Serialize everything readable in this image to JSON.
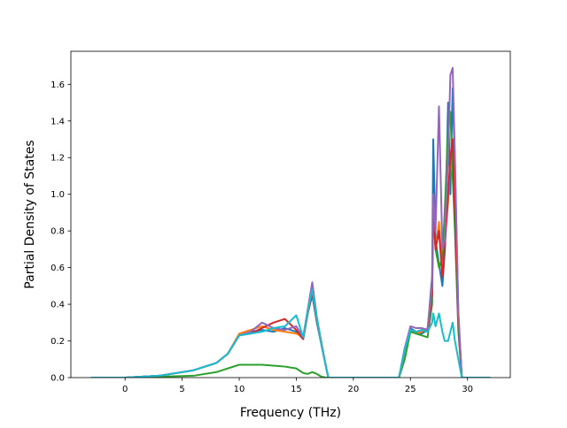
{
  "chart_data": {
    "type": "line",
    "title": "",
    "xlabel": "Frequency (THz)",
    "ylabel": "Partial Density of States",
    "xlim": [
      -4.75,
      33.75
    ],
    "ylim": [
      0.0,
      1.78
    ],
    "xticks": [
      0,
      5,
      10,
      15,
      20,
      25,
      30
    ],
    "yticks": [
      0.0,
      0.2,
      0.4,
      0.6,
      0.8,
      1.0,
      1.2,
      1.4,
      1.6
    ],
    "xtick_labels": [
      "0",
      "5",
      "10",
      "15",
      "20",
      "25",
      "30"
    ],
    "ytick_labels": [
      "0.0",
      "0.2",
      "0.4",
      "0.6",
      "0.8",
      "1.0",
      "1.2",
      "1.4",
      "1.6"
    ],
    "grid": false,
    "legend": false,
    "series": [
      {
        "color": "#1f77b4",
        "x": [
          -3,
          0,
          3,
          6,
          8,
          9,
          10,
          11,
          12,
          13,
          14,
          15,
          15.6,
          16,
          16.4,
          16.8,
          17.2,
          17.6,
          17.8,
          18,
          20,
          23,
          24,
          24.5,
          25,
          25.5,
          26,
          26.5,
          26.9,
          27,
          27.2,
          27.5,
          27.8,
          28,
          28.3,
          28.5,
          28.7,
          28.9,
          29.2,
          29.5,
          30,
          32
        ],
        "y": [
          0,
          0,
          0.01,
          0.04,
          0.08,
          0.13,
          0.23,
          0.25,
          0.26,
          0.25,
          0.27,
          0.25,
          0.21,
          0.35,
          0.45,
          0.3,
          0.18,
          0.06,
          0,
          0,
          0,
          0,
          0,
          0.16,
          0.27,
          0.25,
          0.24,
          0.26,
          0.55,
          1.3,
          0.75,
          0.62,
          0.5,
          0.68,
          1.5,
          1.0,
          1.58,
          1.15,
          0.35,
          0,
          0,
          0
        ]
      },
      {
        "color": "#ff7f0e",
        "x": [
          -3,
          0,
          3,
          6,
          8,
          9,
          10,
          11,
          12,
          13,
          14,
          15,
          15.6,
          16,
          16.4,
          16.8,
          17.2,
          17.6,
          17.8,
          18,
          20,
          23,
          24,
          24.5,
          25,
          25.5,
          26,
          26.5,
          26.9,
          27,
          27.2,
          27.5,
          27.8,
          28,
          28.3,
          28.5,
          28.7,
          28.9,
          29.2,
          29.5,
          30,
          32
        ],
        "y": [
          0,
          0,
          0.01,
          0.04,
          0.08,
          0.13,
          0.24,
          0.26,
          0.28,
          0.26,
          0.25,
          0.24,
          0.22,
          0.36,
          0.5,
          0.32,
          0.19,
          0.06,
          0,
          0,
          0,
          0,
          0,
          0.15,
          0.26,
          0.24,
          0.25,
          0.27,
          0.5,
          1.0,
          0.7,
          0.85,
          0.6,
          0.75,
          0.95,
          1.2,
          1.1,
          0.9,
          0.3,
          0,
          0,
          0
        ]
      },
      {
        "color": "#2ca02c",
        "x": [
          -3,
          0,
          3,
          6,
          8,
          9,
          10,
          11,
          12,
          13,
          14,
          15,
          15.6,
          16,
          16.4,
          16.8,
          17.2,
          17.6,
          17.8,
          18,
          20,
          23,
          24,
          24.5,
          25,
          25.5,
          26,
          26.5,
          26.9,
          27,
          27.2,
          27.5,
          27.8,
          28,
          28.3,
          28.5,
          28.7,
          28.9,
          29.2,
          29.5,
          30,
          32
        ],
        "y": [
          0,
          0,
          0.005,
          0.01,
          0.03,
          0.05,
          0.07,
          0.07,
          0.07,
          0.065,
          0.06,
          0.05,
          0.025,
          0.02,
          0.03,
          0.02,
          0.005,
          0,
          0,
          0,
          0,
          0,
          0,
          0.1,
          0.25,
          0.24,
          0.23,
          0.22,
          0.4,
          0.9,
          0.7,
          0.6,
          0.65,
          0.9,
          1.35,
          1.45,
          1.1,
          0.8,
          0.25,
          0,
          0,
          0
        ]
      },
      {
        "color": "#d62728",
        "x": [
          -3,
          0,
          3,
          6,
          8,
          9,
          10,
          11,
          12,
          13,
          14,
          15,
          15.6,
          16,
          16.4,
          16.8,
          17.2,
          17.6,
          17.8,
          18,
          20,
          23,
          24,
          24.5,
          25,
          25.5,
          26,
          26.5,
          26.9,
          27,
          27.2,
          27.5,
          27.8,
          28,
          28.3,
          28.5,
          28.7,
          28.9,
          29.2,
          29.5,
          30,
          32
        ],
        "y": [
          0,
          0,
          0.01,
          0.04,
          0.08,
          0.13,
          0.23,
          0.24,
          0.27,
          0.3,
          0.32,
          0.26,
          0.21,
          0.35,
          0.47,
          0.31,
          0.18,
          0.06,
          0,
          0,
          0,
          0,
          0,
          0.15,
          0.26,
          0.25,
          0.26,
          0.25,
          0.45,
          0.95,
          0.7,
          0.8,
          0.55,
          0.7,
          1.0,
          1.2,
          1.3,
          0.9,
          0.3,
          0,
          0,
          0
        ]
      },
      {
        "color": "#9467bd",
        "x": [
          -3,
          0,
          3,
          6,
          8,
          9,
          10,
          11,
          12,
          13,
          14,
          15,
          15.6,
          16,
          16.4,
          16.8,
          17.2,
          17.6,
          17.8,
          18,
          20,
          23,
          24,
          24.5,
          25,
          25.5,
          26,
          26.5,
          26.9,
          27,
          27.2,
          27.5,
          27.8,
          28,
          28.3,
          28.5,
          28.7,
          28.9,
          29.2,
          29.5,
          30,
          32
        ],
        "y": [
          0,
          0,
          0.01,
          0.04,
          0.08,
          0.13,
          0.23,
          0.25,
          0.3,
          0.27,
          0.26,
          0.28,
          0.22,
          0.37,
          0.52,
          0.33,
          0.19,
          0.06,
          0,
          0,
          0,
          0,
          0,
          0.16,
          0.28,
          0.27,
          0.27,
          0.26,
          0.5,
          1.0,
          0.8,
          1.48,
          0.7,
          0.75,
          1.2,
          1.65,
          1.69,
          1.2,
          0.35,
          0,
          0,
          0
        ]
      },
      {
        "color": "#17becf",
        "x": [
          -3,
          0,
          3,
          6,
          8,
          9,
          10,
          11,
          12,
          13,
          14,
          15,
          15.6,
          16,
          16.4,
          16.8,
          17.2,
          17.6,
          17.8,
          18,
          20,
          23,
          24,
          24.5,
          25,
          25.5,
          26,
          26.5,
          26.9,
          27,
          27.2,
          27.5,
          27.8,
          28,
          28.3,
          28.5,
          28.7,
          28.9,
          29.2,
          29.5,
          30,
          32
        ],
        "y": [
          0,
          0,
          0.01,
          0.04,
          0.08,
          0.13,
          0.23,
          0.24,
          0.25,
          0.27,
          0.28,
          0.34,
          0.22,
          0.36,
          0.48,
          0.32,
          0.18,
          0.06,
          0,
          0,
          0,
          0,
          0,
          0.15,
          0.26,
          0.25,
          0.26,
          0.25,
          0.3,
          0.35,
          0.28,
          0.35,
          0.25,
          0.2,
          0.2,
          0.25,
          0.3,
          0.2,
          0.1,
          0,
          0,
          0
        ]
      }
    ]
  }
}
